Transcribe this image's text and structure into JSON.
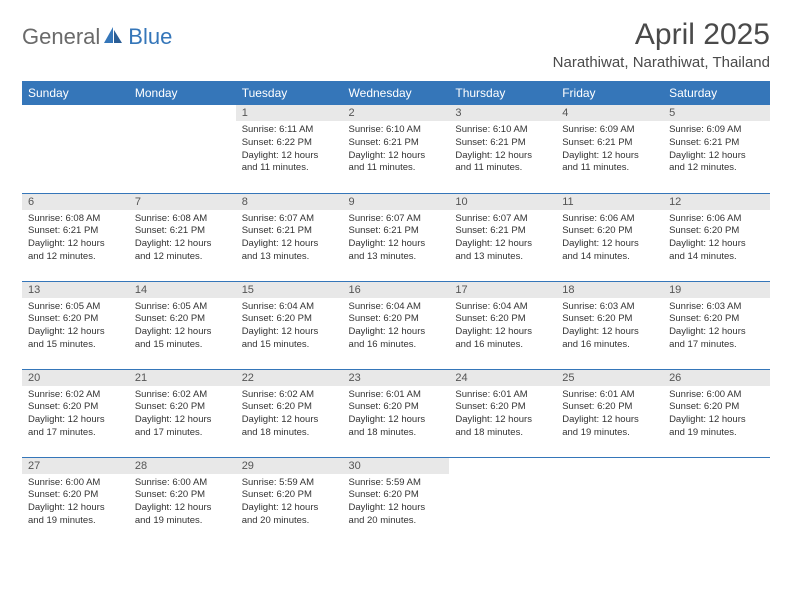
{
  "logo": {
    "text1": "General",
    "text2": "Blue"
  },
  "title": "April 2025",
  "location": "Narathiwat, Narathiwat, Thailand",
  "colors": {
    "header_bg": "#3576b9",
    "header_text": "#ffffff",
    "daynum_bg": "#e8e8e8",
    "row_border": "#3576b9",
    "logo_gray": "#6a6a6a",
    "logo_blue": "#3576b9"
  },
  "weekdays": [
    "Sunday",
    "Monday",
    "Tuesday",
    "Wednesday",
    "Thursday",
    "Friday",
    "Saturday"
  ],
  "weeks": [
    [
      null,
      null,
      {
        "n": "1",
        "sr": "6:11 AM",
        "ss": "6:22 PM",
        "dl": "12 hours and 11 minutes."
      },
      {
        "n": "2",
        "sr": "6:10 AM",
        "ss": "6:21 PM",
        "dl": "12 hours and 11 minutes."
      },
      {
        "n": "3",
        "sr": "6:10 AM",
        "ss": "6:21 PM",
        "dl": "12 hours and 11 minutes."
      },
      {
        "n": "4",
        "sr": "6:09 AM",
        "ss": "6:21 PM",
        "dl": "12 hours and 11 minutes."
      },
      {
        "n": "5",
        "sr": "6:09 AM",
        "ss": "6:21 PM",
        "dl": "12 hours and 12 minutes."
      }
    ],
    [
      {
        "n": "6",
        "sr": "6:08 AM",
        "ss": "6:21 PM",
        "dl": "12 hours and 12 minutes."
      },
      {
        "n": "7",
        "sr": "6:08 AM",
        "ss": "6:21 PM",
        "dl": "12 hours and 12 minutes."
      },
      {
        "n": "8",
        "sr": "6:07 AM",
        "ss": "6:21 PM",
        "dl": "12 hours and 13 minutes."
      },
      {
        "n": "9",
        "sr": "6:07 AM",
        "ss": "6:21 PM",
        "dl": "12 hours and 13 minutes."
      },
      {
        "n": "10",
        "sr": "6:07 AM",
        "ss": "6:21 PM",
        "dl": "12 hours and 13 minutes."
      },
      {
        "n": "11",
        "sr": "6:06 AM",
        "ss": "6:20 PM",
        "dl": "12 hours and 14 minutes."
      },
      {
        "n": "12",
        "sr": "6:06 AM",
        "ss": "6:20 PM",
        "dl": "12 hours and 14 minutes."
      }
    ],
    [
      {
        "n": "13",
        "sr": "6:05 AM",
        "ss": "6:20 PM",
        "dl": "12 hours and 15 minutes."
      },
      {
        "n": "14",
        "sr": "6:05 AM",
        "ss": "6:20 PM",
        "dl": "12 hours and 15 minutes."
      },
      {
        "n": "15",
        "sr": "6:04 AM",
        "ss": "6:20 PM",
        "dl": "12 hours and 15 minutes."
      },
      {
        "n": "16",
        "sr": "6:04 AM",
        "ss": "6:20 PM",
        "dl": "12 hours and 16 minutes."
      },
      {
        "n": "17",
        "sr": "6:04 AM",
        "ss": "6:20 PM",
        "dl": "12 hours and 16 minutes."
      },
      {
        "n": "18",
        "sr": "6:03 AM",
        "ss": "6:20 PM",
        "dl": "12 hours and 16 minutes."
      },
      {
        "n": "19",
        "sr": "6:03 AM",
        "ss": "6:20 PM",
        "dl": "12 hours and 17 minutes."
      }
    ],
    [
      {
        "n": "20",
        "sr": "6:02 AM",
        "ss": "6:20 PM",
        "dl": "12 hours and 17 minutes."
      },
      {
        "n": "21",
        "sr": "6:02 AM",
        "ss": "6:20 PM",
        "dl": "12 hours and 17 minutes."
      },
      {
        "n": "22",
        "sr": "6:02 AM",
        "ss": "6:20 PM",
        "dl": "12 hours and 18 minutes."
      },
      {
        "n": "23",
        "sr": "6:01 AM",
        "ss": "6:20 PM",
        "dl": "12 hours and 18 minutes."
      },
      {
        "n": "24",
        "sr": "6:01 AM",
        "ss": "6:20 PM",
        "dl": "12 hours and 18 minutes."
      },
      {
        "n": "25",
        "sr": "6:01 AM",
        "ss": "6:20 PM",
        "dl": "12 hours and 19 minutes."
      },
      {
        "n": "26",
        "sr": "6:00 AM",
        "ss": "6:20 PM",
        "dl": "12 hours and 19 minutes."
      }
    ],
    [
      {
        "n": "27",
        "sr": "6:00 AM",
        "ss": "6:20 PM",
        "dl": "12 hours and 19 minutes."
      },
      {
        "n": "28",
        "sr": "6:00 AM",
        "ss": "6:20 PM",
        "dl": "12 hours and 19 minutes."
      },
      {
        "n": "29",
        "sr": "5:59 AM",
        "ss": "6:20 PM",
        "dl": "12 hours and 20 minutes."
      },
      {
        "n": "30",
        "sr": "5:59 AM",
        "ss": "6:20 PM",
        "dl": "12 hours and 20 minutes."
      },
      null,
      null,
      null
    ]
  ],
  "labels": {
    "sunrise": "Sunrise:",
    "sunset": "Sunset:",
    "daylight": "Daylight:"
  }
}
